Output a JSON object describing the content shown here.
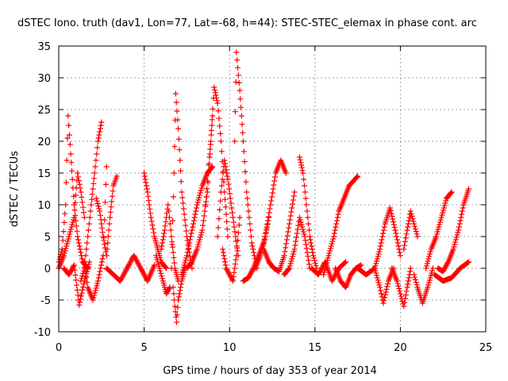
{
  "chart_data": {
    "type": "scatter",
    "title": "dSTEC Iono. truth (dav1, Lon=77, Lat=-68, h=44): STEC-STEC_elemax in phase cont. arc",
    "xlabel": "GPS time / hours of day 353 of year 2014",
    "ylabel": "dSTEC  / TECUs",
    "xlim": [
      0,
      25
    ],
    "ylim": [
      -10,
      35
    ],
    "xticks": [
      0,
      5,
      10,
      15,
      20,
      25
    ],
    "yticks": [
      -10,
      -5,
      0,
      5,
      10,
      15,
      20,
      25,
      30,
      35
    ],
    "xtick_labels": [
      "0",
      "5",
      "10",
      "15",
      "20",
      "25"
    ],
    "ytick_labels": [
      "-10",
      "-5",
      "0",
      "5",
      "10",
      "15",
      "20",
      "25",
      "30",
      "35"
    ],
    "grid": true,
    "marker": "+",
    "color": "#ff0000",
    "arcs": [
      {
        "x": [
          0.0,
          0.2,
          0.4,
          0.55,
          0.7,
          0.9,
          1.1,
          1.4,
          1.7
        ],
        "y": [
          1.0,
          3.0,
          10.0,
          24.0,
          18.0,
          10.0,
          5.0,
          1.0,
          0.0
        ]
      },
      {
        "x": [
          0.0,
          0.3,
          0.6,
          0.9,
          1.1,
          1.3,
          1.5
        ],
        "y": [
          0.0,
          2.0,
          5.0,
          8.0,
          15.0,
          12.0,
          8.0
        ]
      },
      {
        "x": [
          1.3,
          1.5,
          1.7,
          1.9,
          2.1,
          2.3,
          2.5
        ],
        "y": [
          -2.0,
          0.0,
          5.0,
          10.0,
          15.0,
          20.0,
          23.0
        ]
      },
      {
        "x": [
          1.5,
          1.7,
          2.0,
          2.3,
          2.6,
          2.8
        ],
        "y": [
          1.0,
          -3.0,
          -5.0,
          -2.0,
          2.0,
          16.0
        ]
      },
      {
        "x": [
          2.2,
          2.4,
          2.6,
          2.8,
          3.0,
          3.2,
          3.4
        ],
        "y": [
          11.0,
          9.0,
          5.0,
          2.0,
          8.0,
          13.0,
          14.5
        ]
      },
      {
        "x": [
          0.3,
          0.6,
          0.9,
          1.2,
          1.5,
          1.8
        ],
        "y": [
          0.0,
          -1.0,
          0.5,
          -5.8,
          -2.0,
          1.0
        ]
      },
      {
        "x": [
          2.8,
          3.2,
          3.6,
          4.0,
          4.4,
          4.8,
          5.2,
          5.6
        ],
        "y": [
          0.0,
          -1.0,
          -2.0,
          0.0,
          2.0,
          0.0,
          -2.0,
          0.5
        ]
      },
      {
        "x": [
          5.0,
          5.2,
          5.4,
          5.6,
          5.8,
          6.0,
          6.3
        ],
        "y": [
          15.0,
          12.0,
          8.0,
          5.0,
          3.0,
          1.0,
          0.0
        ]
      },
      {
        "x": [
          5.7,
          5.9,
          6.1,
          6.3,
          6.5
        ],
        "y": [
          2.0,
          0.0,
          -2.0,
          -4.0,
          -3.0
        ]
      },
      {
        "x": [
          6.0,
          6.2,
          6.4,
          6.6,
          6.8,
          7.0
        ],
        "y": [
          3.0,
          6.0,
          10.0,
          5.0,
          0.0,
          -2.0
        ]
      },
      {
        "x": [
          6.6,
          6.75,
          6.85,
          7.0,
          7.2,
          7.5,
          7.8
        ],
        "y": [
          0.0,
          15.0,
          27.5,
          22.0,
          12.0,
          5.0,
          0.0
        ]
      },
      {
        "x": [
          6.7,
          6.8,
          6.9,
          7.0,
          7.2,
          7.4
        ],
        "y": [
          -3.0,
          -6.0,
          -8.5,
          -5.0,
          -2.0,
          0.0
        ]
      },
      {
        "x": [
          7.2,
          7.5,
          7.8,
          8.1,
          8.4,
          8.7,
          9.0
        ],
        "y": [
          -1.0,
          2.0,
          6.0,
          10.0,
          13.0,
          15.0,
          16.0
        ]
      },
      {
        "x": [
          7.5,
          7.8,
          8.1,
          8.4,
          8.7,
          9.0
        ],
        "y": [
          0.0,
          1.0,
          3.0,
          6.0,
          12.0,
          24.0
        ]
      },
      {
        "x": [
          8.6,
          8.9,
          9.1,
          9.3,
          9.5,
          9.7,
          9.9
        ],
        "y": [
          10.0,
          20.0,
          28.5,
          26.0,
          20.0,
          12.0,
          5.0
        ]
      },
      {
        "x": [
          9.3,
          9.5,
          9.7,
          9.9,
          10.2,
          10.5
        ],
        "y": [
          5.0,
          12.0,
          17.0,
          14.0,
          8.0,
          2.0
        ]
      },
      {
        "x": [
          9.6,
          9.8,
          10.0,
          10.2,
          10.4,
          10.6
        ],
        "y": [
          3.0,
          0.0,
          -1.0,
          -2.0,
          2.0,
          8.0
        ]
      },
      {
        "x": [
          10.3,
          10.4,
          10.6,
          10.8,
          11.0,
          11.3,
          11.6
        ],
        "y": [
          20.0,
          34.0,
          28.0,
          20.0,
          12.0,
          4.0,
          0.0
        ]
      },
      {
        "x": [
          10.8,
          11.1,
          11.4,
          11.7,
          12.0,
          12.3
        ],
        "y": [
          -2.0,
          -1.5,
          0.0,
          2.0,
          4.0,
          8.0
        ]
      },
      {
        "x": [
          11.5,
          11.8,
          12.1,
          12.4,
          12.7,
          13.0,
          13.3
        ],
        "y": [
          0.0,
          2.0,
          5.0,
          10.0,
          15.0,
          17.0,
          15.0
        ]
      },
      {
        "x": [
          12.0,
          12.3,
          12.6,
          12.9,
          13.2,
          13.5,
          13.8
        ],
        "y": [
          3.0,
          1.0,
          0.0,
          -0.5,
          2.0,
          7.0,
          12.0
        ]
      },
      {
        "x": [
          13.2,
          13.5,
          13.8,
          14.1,
          14.4,
          14.7
        ],
        "y": [
          -1.0,
          0.0,
          3.0,
          8.0,
          5.0,
          0.0
        ]
      },
      {
        "x": [
          14.1,
          14.3,
          14.5,
          14.7,
          14.9,
          15.1
        ],
        "y": [
          17.5,
          15.0,
          10.0,
          5.0,
          2.0,
          0.0
        ]
      },
      {
        "x": [
          14.8,
          15.2,
          15.6,
          16.0,
          16.4,
          16.8
        ],
        "y": [
          0.0,
          -1.0,
          1.0,
          -2.0,
          0.0,
          1.0
        ]
      },
      {
        "x": [
          15.5,
          15.8,
          16.1,
          16.4,
          16.7,
          17.0,
          17.5
        ],
        "y": [
          -1.0,
          2.0,
          5.0,
          9.0,
          11.0,
          13.0,
          14.5
        ]
      },
      {
        "x": [
          16.2,
          16.5,
          16.8,
          17.1,
          17.4,
          17.7
        ],
        "y": [
          0.0,
          -2.0,
          -3.0,
          -1.0,
          0.0,
          0.5
        ]
      },
      {
        "x": [
          17.5,
          18.0,
          18.5,
          18.8,
          19.0,
          19.3,
          19.6
        ],
        "y": [
          0.0,
          -1.0,
          0.0,
          -3.0,
          -5.5,
          -2.0,
          0.0
        ]
      },
      {
        "x": [
          18.5,
          18.8,
          19.1,
          19.4,
          19.7,
          20.0
        ],
        "y": [
          0.0,
          3.0,
          7.0,
          9.5,
          6.0,
          2.0
        ]
      },
      {
        "x": [
          19.5,
          19.8,
          20.0,
          20.2,
          20.4,
          20.6
        ],
        "y": [
          0.0,
          -2.0,
          -4.0,
          -6.0,
          -3.0,
          0.0
        ]
      },
      {
        "x": [
          20.2,
          20.4,
          20.6,
          20.8,
          21.0
        ],
        "y": [
          3.0,
          6.0,
          9.0,
          7.0,
          5.0
        ]
      },
      {
        "x": [
          20.8,
          21.0,
          21.3,
          21.6,
          21.9
        ],
        "y": [
          -1.0,
          -3.0,
          -5.5,
          -3.0,
          0.0
        ]
      },
      {
        "x": [
          21.5,
          21.8,
          22.1,
          22.4,
          22.7,
          23.0
        ],
        "y": [
          0.0,
          3.0,
          5.0,
          8.0,
          11.0,
          12.0
        ]
      },
      {
        "x": [
          22.2,
          22.5,
          22.8,
          23.1,
          23.4,
          23.7,
          24.0
        ],
        "y": [
          0.0,
          -0.5,
          1.0,
          3.0,
          6.0,
          10.0,
          12.5
        ]
      },
      {
        "x": [
          22.0,
          22.5,
          23.0,
          23.5,
          24.0
        ],
        "y": [
          -1.0,
          -2.0,
          -1.5,
          0.0,
          1.0
        ]
      }
    ]
  }
}
